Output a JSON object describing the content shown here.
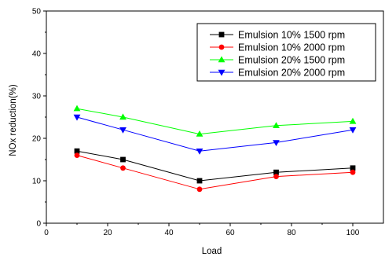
{
  "chart_data": {
    "type": "line",
    "title": "",
    "xlabel": "Load",
    "ylabel": "NOx reduction(%)",
    "xlim": [
      0,
      110
    ],
    "ylim": [
      0,
      50
    ],
    "xticks": [
      0,
      20,
      40,
      60,
      80,
      100
    ],
    "yticks": [
      0,
      10,
      20,
      30,
      40,
      50
    ],
    "grid": false,
    "legend_position": "top-right",
    "x": [
      10,
      25,
      50,
      75,
      100
    ],
    "series": [
      {
        "name": "Emulsion 10% 1500 rpm",
        "color": "#000000",
        "marker": "square",
        "values": [
          17,
          15,
          10,
          12,
          13
        ]
      },
      {
        "name": "Emulsion 10% 2000 rpm",
        "color": "#ff0000",
        "marker": "circle",
        "values": [
          16,
          13,
          8,
          11,
          12
        ]
      },
      {
        "name": "Emulsion 20% 1500 rpm",
        "color": "#00ff00",
        "marker": "triangle-up",
        "values": [
          27,
          25,
          21,
          23,
          24
        ]
      },
      {
        "name": "Emulsion 20% 2000 rpm",
        "color": "#0000ff",
        "marker": "triangle-down",
        "values": [
          25,
          22,
          17,
          19,
          22
        ]
      }
    ]
  }
}
